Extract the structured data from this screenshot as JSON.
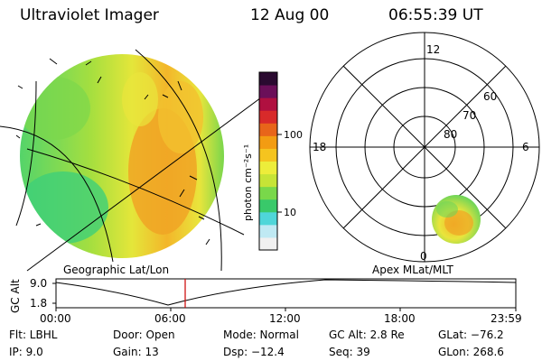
{
  "header": {
    "instrument": "Ultraviolet Imager",
    "date": "12 Aug 00",
    "time": "06:55:39 UT"
  },
  "colorbar": {
    "label": "photon cm⁻²s⁻¹",
    "ticks": [
      "100",
      "10"
    ],
    "colors": [
      "#f0f0f0",
      "#bfe9f3",
      "#4fd6d9",
      "#39c96a",
      "#79d84a",
      "#c6e436",
      "#eded3a",
      "#f5c41f",
      "#f39c12",
      "#e8651a",
      "#d82a2a",
      "#b01040",
      "#6b0f59",
      "#2a0a30"
    ]
  },
  "geo_panel": {
    "label": "Geographic Lat/Lon"
  },
  "polar_panel": {
    "label": "Apex MLat/MLT",
    "mlt_labels": {
      "top": "12",
      "left": "18",
      "right": "6",
      "bottom": "0"
    },
    "lat_labels": [
      "60",
      "70",
      "80"
    ]
  },
  "timeline": {
    "ylabel": "GC Alt",
    "yticks": [
      "9.0",
      "1.8"
    ],
    "xticks": [
      "00:00",
      "06:00",
      "12:00",
      "18:00",
      "23:59"
    ],
    "marker_color": "#cc0000"
  },
  "status": {
    "flt": "Flt: LBHL",
    "ip": "IP:  9.0",
    "door": "Door: Open",
    "gain": "Gain: 13",
    "mode": "Mode: Normal",
    "dsp": "Dsp:  −12.4",
    "gc_alt": "GC Alt: 2.8 Re",
    "seq": "Seq: 39",
    "glat": "GLat: −76.2",
    "glon": "GLon: 268.6"
  }
}
